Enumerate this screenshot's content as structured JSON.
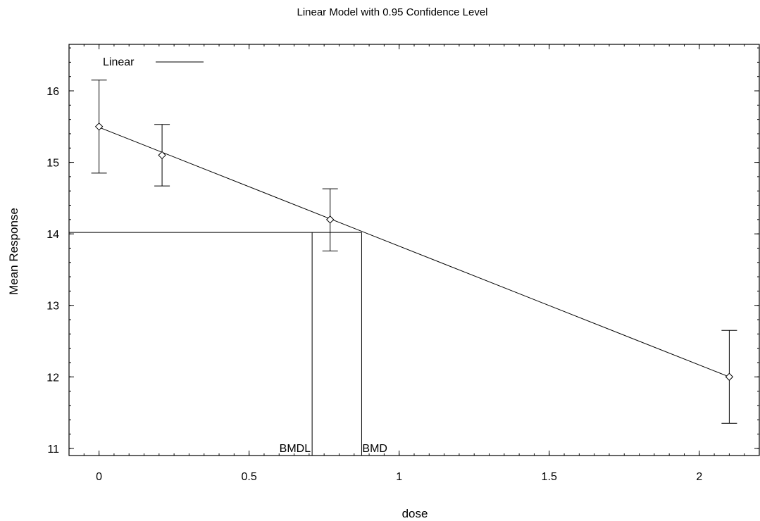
{
  "chart_data": {
    "type": "scatter",
    "title": "Linear Model with 0.95 Confidence Level",
    "xlabel": "dose",
    "ylabel": "Mean Response",
    "xlim": [
      -0.1,
      2.2
    ],
    "ylim": [
      10.9,
      16.65
    ],
    "xticks": [
      0,
      0.5,
      1,
      1.5,
      2
    ],
    "xtick_labels": [
      "0",
      "0.5",
      "1",
      "1.5",
      "2"
    ],
    "yticks": [
      11,
      12,
      13,
      14,
      15,
      16
    ],
    "ytick_labels": [
      "11",
      "12",
      "13",
      "14",
      "15",
      "16"
    ],
    "grid": false,
    "legend": {
      "label": "Linear",
      "position": "top-left"
    },
    "points": [
      {
        "x": 0,
        "y": 15.5,
        "lower": 14.85,
        "upper": 16.15
      },
      {
        "x": 0.21,
        "y": 15.1,
        "lower": 14.67,
        "upper": 15.53
      },
      {
        "x": 0.77,
        "y": 14.2,
        "lower": 13.76,
        "upper": 14.63
      },
      {
        "x": 2.1,
        "y": 12.0,
        "lower": 11.35,
        "upper": 12.65
      }
    ],
    "fit_line": {
      "name": "Linear",
      "x": [
        0,
        2.1
      ],
      "y": [
        15.49,
        12.0
      ]
    },
    "bmd": {
      "label": "BMD",
      "x": 0.875,
      "y": 14.02
    },
    "bmdl": {
      "label": "BMDL",
      "x": 0.71
    }
  }
}
